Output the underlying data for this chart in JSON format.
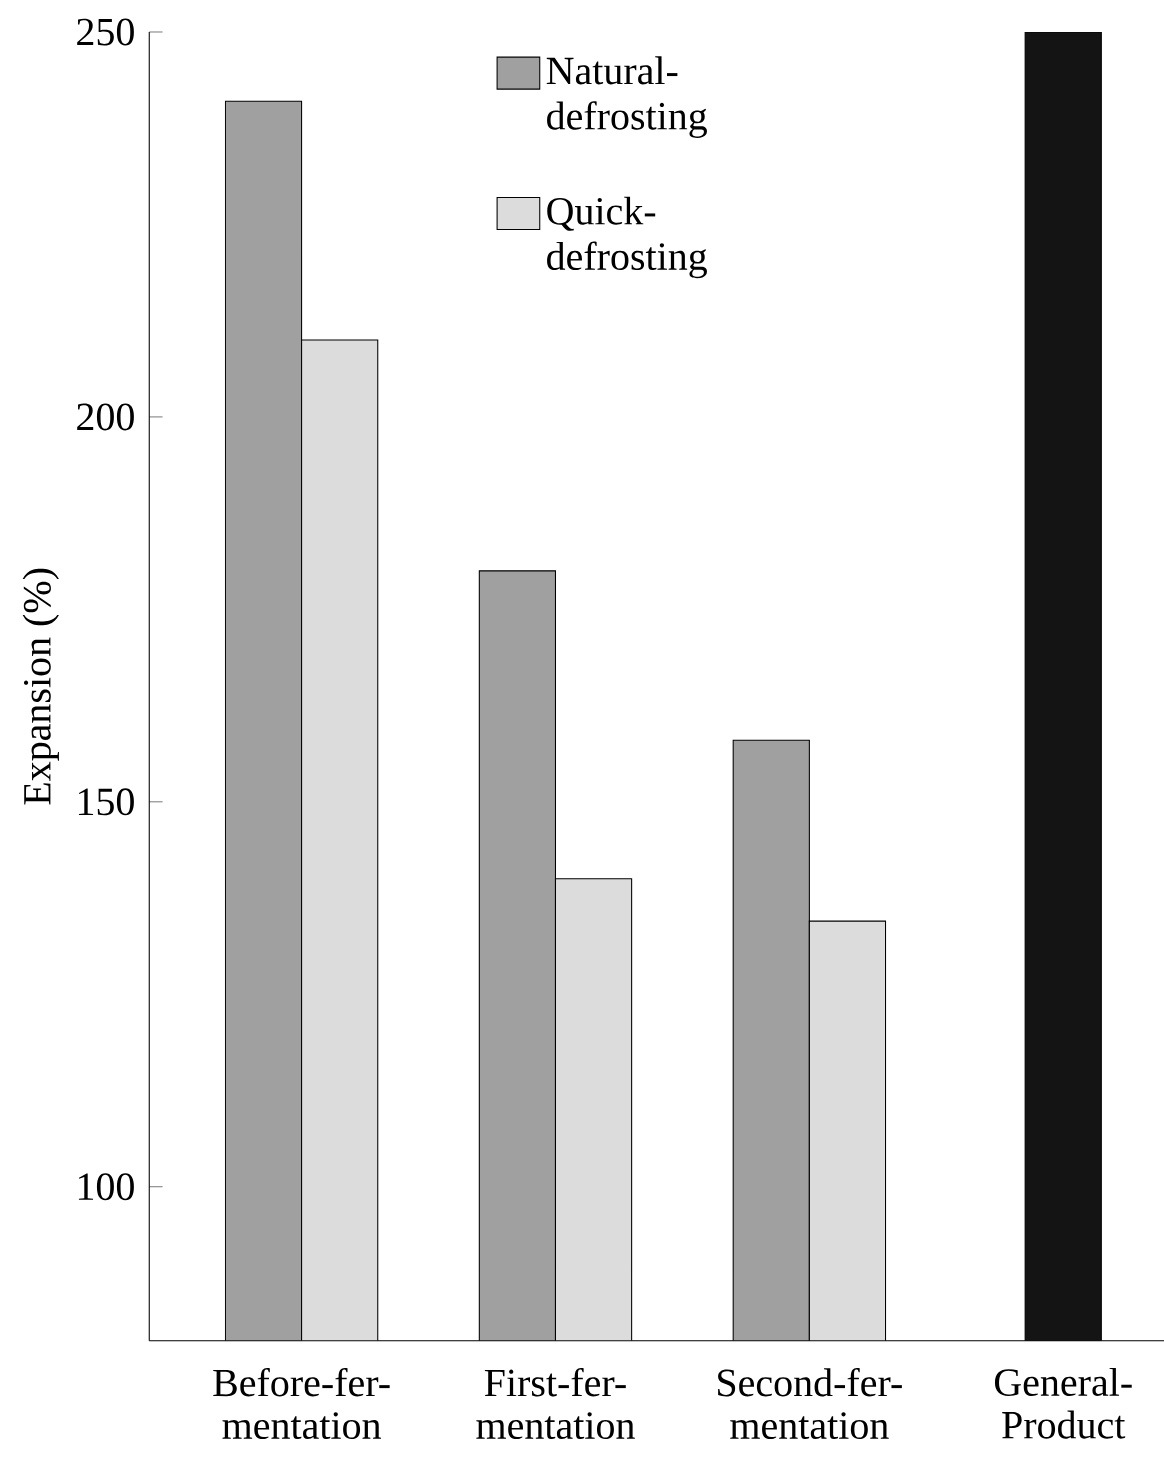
{
  "chart_data": {
    "type": "bar",
    "ylabel": "Expansion (%)",
    "categories": [
      "Before-fer-mentation",
      "First-fer-mentation",
      "Second-fer-mentation",
      "General-Product"
    ],
    "series": [
      {
        "name": "Natural-defrosting",
        "color": "#a0a0a0",
        "values": [
          241,
          180,
          158,
          null
        ]
      },
      {
        "name": "Quick-defrosting",
        "color": "#dcdcdc",
        "values": [
          210,
          140,
          134.5,
          null
        ]
      },
      {
        "color": "#141414",
        "values": [
          null,
          null,
          null,
          250
        ]
      }
    ],
    "ylim": [
      80,
      250
    ],
    "yticks": [
      100,
      150,
      200,
      250
    ],
    "legend": "top",
    "grid": false
  }
}
